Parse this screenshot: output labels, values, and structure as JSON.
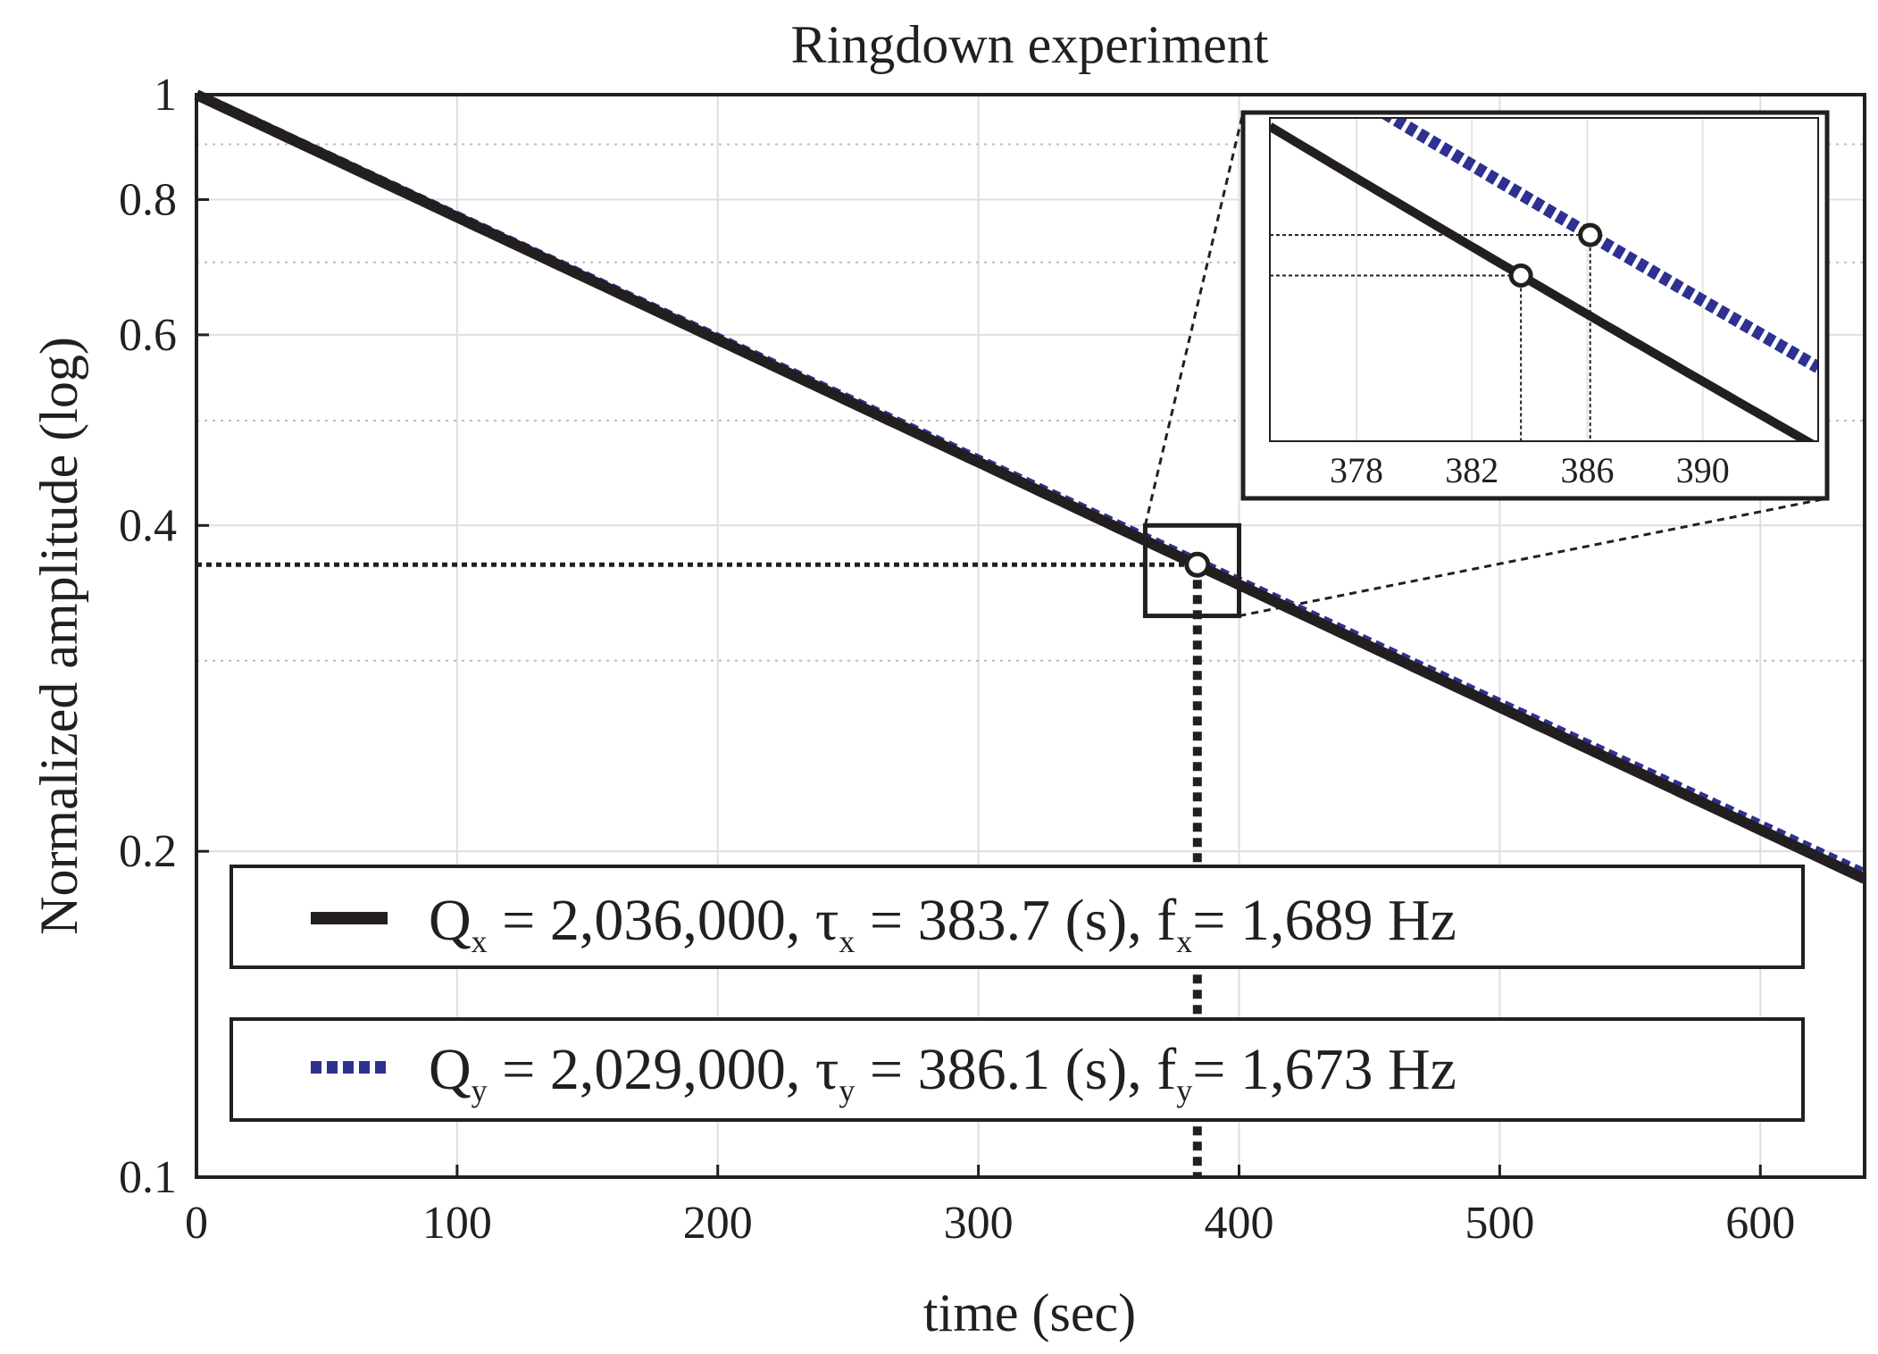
{
  "chart_data": {
    "type": "line",
    "title": "Ringdown experiment",
    "xlabel": "time (sec)",
    "ylabel": "Normalized amplitude (log)",
    "xlim": [
      0,
      640
    ],
    "ylim": [
      0.1,
      1
    ],
    "yscale": "log",
    "grid": true,
    "xticks": [
      0,
      100,
      200,
      300,
      400,
      500,
      600
    ],
    "yticks": [
      0.1,
      0.2,
      0.4,
      0.6,
      0.8,
      1
    ],
    "ytick_labels": [
      "0.1",
      "0.2",
      "0.4",
      "0.6",
      "0.8",
      "1"
    ],
    "series": [
      {
        "name": "x",
        "style": "solid",
        "color": "#231f20",
        "tau": 383.7,
        "legend": {
          "prefix": "Q",
          "sub1": "x",
          "text1": " = 2,036,000, τ",
          "sub2": "x",
          "text2": " = 383.7 (s), f",
          "sub3": "x",
          "text3": "= 1,689 Hz"
        }
      },
      {
        "name": "y",
        "style": "dotted",
        "color": "#2e3192",
        "tau": 386.1,
        "legend": {
          "prefix": "Q",
          "sub1": "y",
          "text1": " = 2,029,000, τ",
          "sub2": "y",
          "text2": " = 386.1 (s), f",
          "sub3": "y",
          "text3": "= 1,673 Hz"
        }
      }
    ],
    "marker": {
      "x": 384,
      "y": 0.368
    },
    "zoom_box": {
      "x": [
        364,
        400
      ],
      "y": [
        0.33,
        0.4
      ]
    },
    "inset": {
      "xlim": [
        375,
        394
      ],
      "ylim": [
        0.3585,
        0.3768
      ],
      "xticks": [
        378,
        382,
        386,
        390
      ],
      "markers": [
        {
          "x": 383.7,
          "y": 0.3679
        },
        {
          "x": 386.1,
          "y": 0.3679
        }
      ]
    },
    "legend_location": "lower-center"
  }
}
